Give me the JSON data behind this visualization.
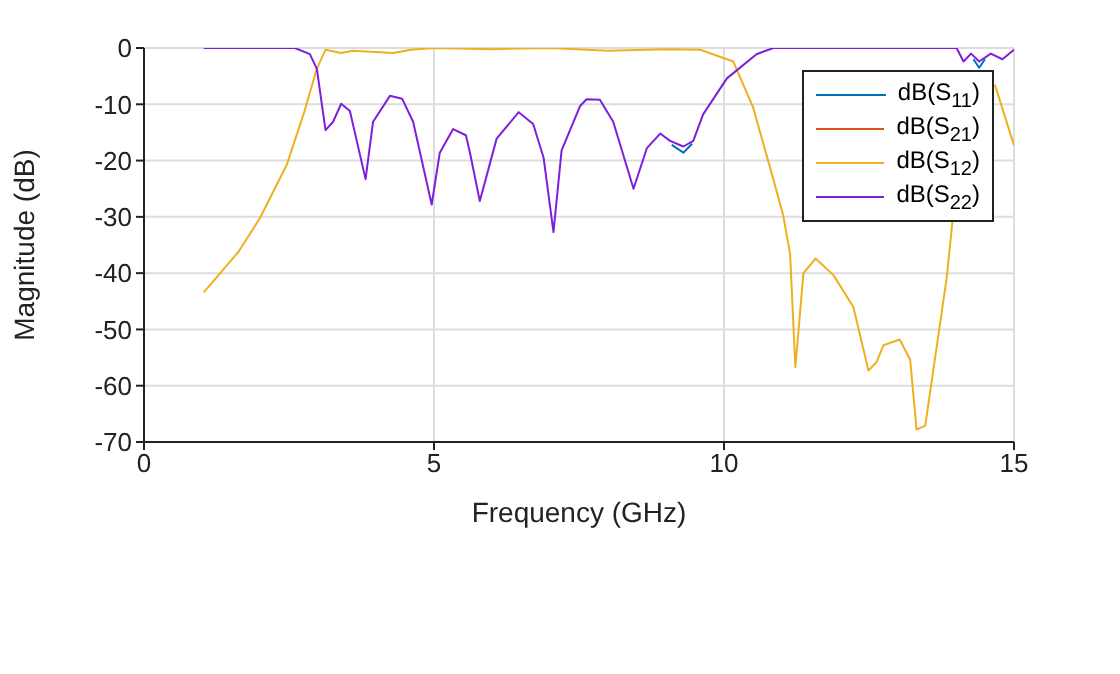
{
  "chart_data": {
    "type": "line",
    "xlabel": "Frequency (GHz)",
    "ylabel": "Magnitude (dB)",
    "xlim": [
      0,
      15
    ],
    "xticks": [
      0,
      5,
      10,
      15
    ],
    "ylim": [
      -70,
      0
    ],
    "yticks": [
      -70,
      -60,
      -50,
      -40,
      -30,
      -20,
      -10,
      0
    ],
    "grid": true,
    "legend": "top right",
    "marker": "none",
    "line_style": "solid",
    "series": [
      {
        "name": "dB(S$_{11}$)",
        "color": "#0072bd",
        "x": [
          9.1,
          9.3,
          9.45,
          12,
          14.3,
          14.4,
          14.5
        ],
        "values": [
          -17.2,
          -18.6,
          -17.0,
          null,
          -2.0,
          -3.5,
          -2.0
        ]
      },
      {
        "name": "dB(S$_{21}$)",
        "color": "#d95319"
      },
      {
        "name": "dB(S$_{12}$)",
        "color": "#edb120",
        "x": [
          1.03,
          1.63,
          2.0,
          2.46,
          2.75,
          2.98,
          3.13,
          3.4,
          3.6,
          4.3,
          4.6,
          5.0,
          6.0,
          7.0,
          8.0,
          9.0,
          9.59,
          10.16,
          10.5,
          10.85,
          11.02,
          11.14,
          11.23,
          11.37,
          11.58,
          11.89,
          12.23,
          12.49,
          12.63,
          12.75,
          13.03,
          13.21,
          13.32,
          13.47,
          13.84,
          13.95,
          14.0,
          14.3,
          14.67,
          15
        ],
        "values": [
          -43.4,
          -36.2,
          -30.2,
          -20.8,
          -11.8,
          -3.7,
          -0.3,
          -0.9,
          -0.5,
          -0.9,
          -0.3,
          0,
          -0.2,
          0,
          -0.5,
          -0.2,
          -0.3,
          -2.4,
          -10.5,
          -23.3,
          -29.7,
          -36.6,
          -56.7,
          -40,
          -37.4,
          -40.4,
          -46,
          -57.3,
          -55.8,
          -52.8,
          -51.8,
          -55.4,
          -67.8,
          -67.1,
          -40.8,
          -29.7,
          null,
          null,
          -6.5,
          -17.3
        ]
      },
      {
        "name": "dB(S$_{22}$)",
        "color": "#7e1fdc",
        "x": [
          1.03,
          2.6,
          2.86,
          2.98,
          3.13,
          3.26,
          3.4,
          3.55,
          3.82,
          3.95,
          4.24,
          4.45,
          4.64,
          4.96,
          5.1,
          5.33,
          5.55,
          5.62,
          5.79,
          6.08,
          6.46,
          6.71,
          6.89,
          7.06,
          7.2,
          7.52,
          7.63,
          7.86,
          8.09,
          8.44,
          8.67,
          8.9,
          9.07,
          9.3,
          9.47,
          9.64,
          10.05,
          10.56,
          10.85,
          14.01,
          14.13,
          14.26,
          14.4,
          14.6,
          14.8,
          15
        ],
        "values": [
          0,
          0,
          -1.1,
          -3.7,
          -14.6,
          -13.1,
          -9.9,
          -11.2,
          -23.3,
          -13.1,
          -8.5,
          -9,
          -13.1,
          -27.8,
          -18.6,
          -14.4,
          -15.5,
          -18.6,
          -27.2,
          -16.1,
          -11.4,
          -13.5,
          -19.5,
          -32.7,
          -18.2,
          -10.3,
          -9.1,
          -9.2,
          -13.1,
          -25,
          -17.8,
          -15.2,
          -16.5,
          -17.5,
          -16.5,
          -11.8,
          -5.4,
          -1.1,
          0,
          0,
          -2.4,
          -1,
          -2.4,
          -1,
          -2,
          -0.3
        ]
      }
    ]
  }
}
